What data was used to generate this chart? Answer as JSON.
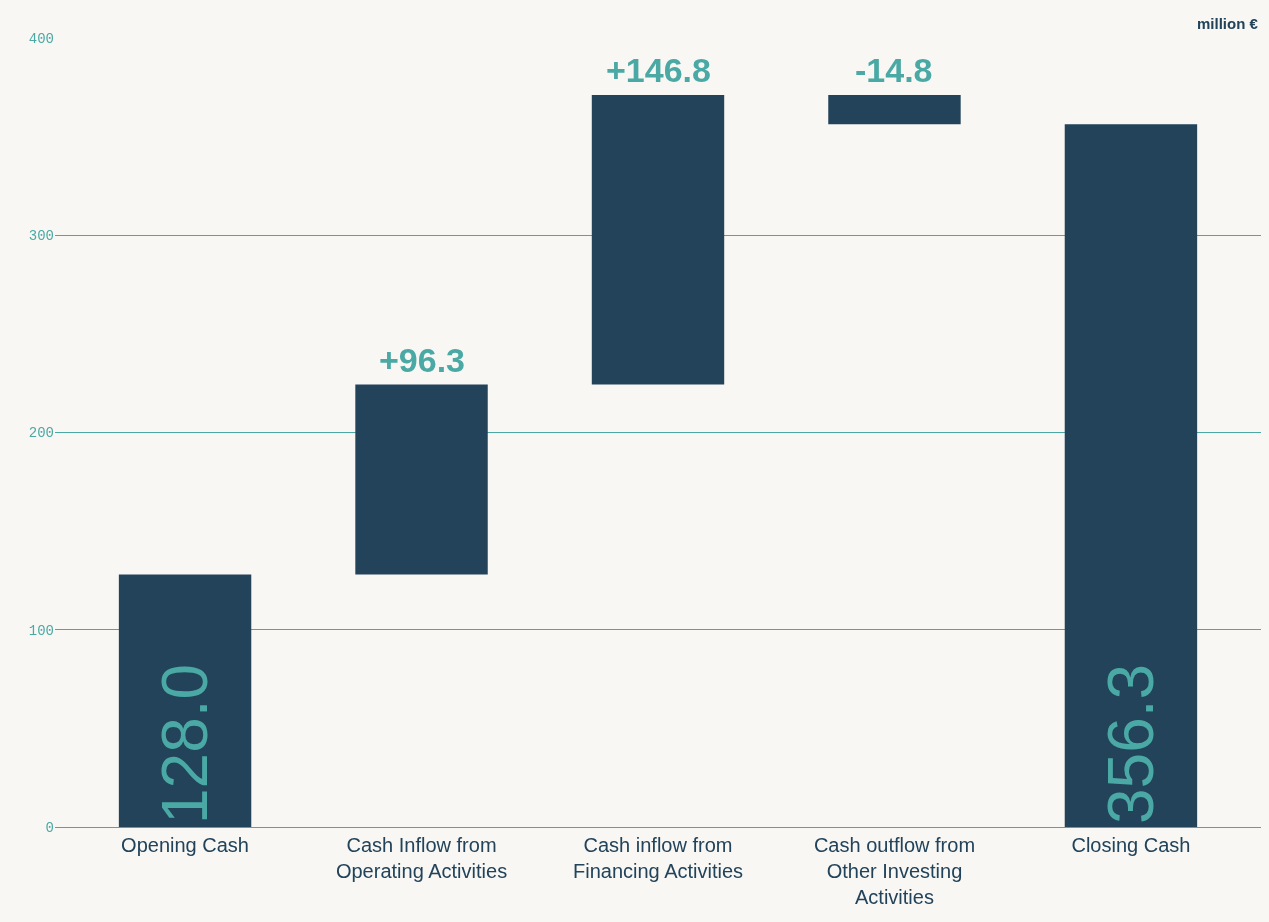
{
  "chart_data": {
    "type": "bar",
    "categories": [
      "Opening Cash",
      "Cash Inflow from Operating Activities",
      "Cash inflow from Financing Activities",
      "Cash outflow from Other Investing Activities",
      "Closing Cash"
    ],
    "values": [
      128.0,
      96.3,
      146.8,
      -14.8,
      356.3
    ],
    "base": [
      0,
      128.0,
      224.3,
      371.1,
      0
    ],
    "value_labels": [
      "128.0",
      "+96.3",
      "+146.8",
      "-14.8",
      "356.3"
    ],
    "color": "#22435a",
    "ylim": [
      0,
      400
    ],
    "yticks": [
      0,
      100,
      200,
      300,
      400
    ],
    "grid": "y",
    "legend": false,
    "annotations": [
      "million €"
    ]
  }
}
